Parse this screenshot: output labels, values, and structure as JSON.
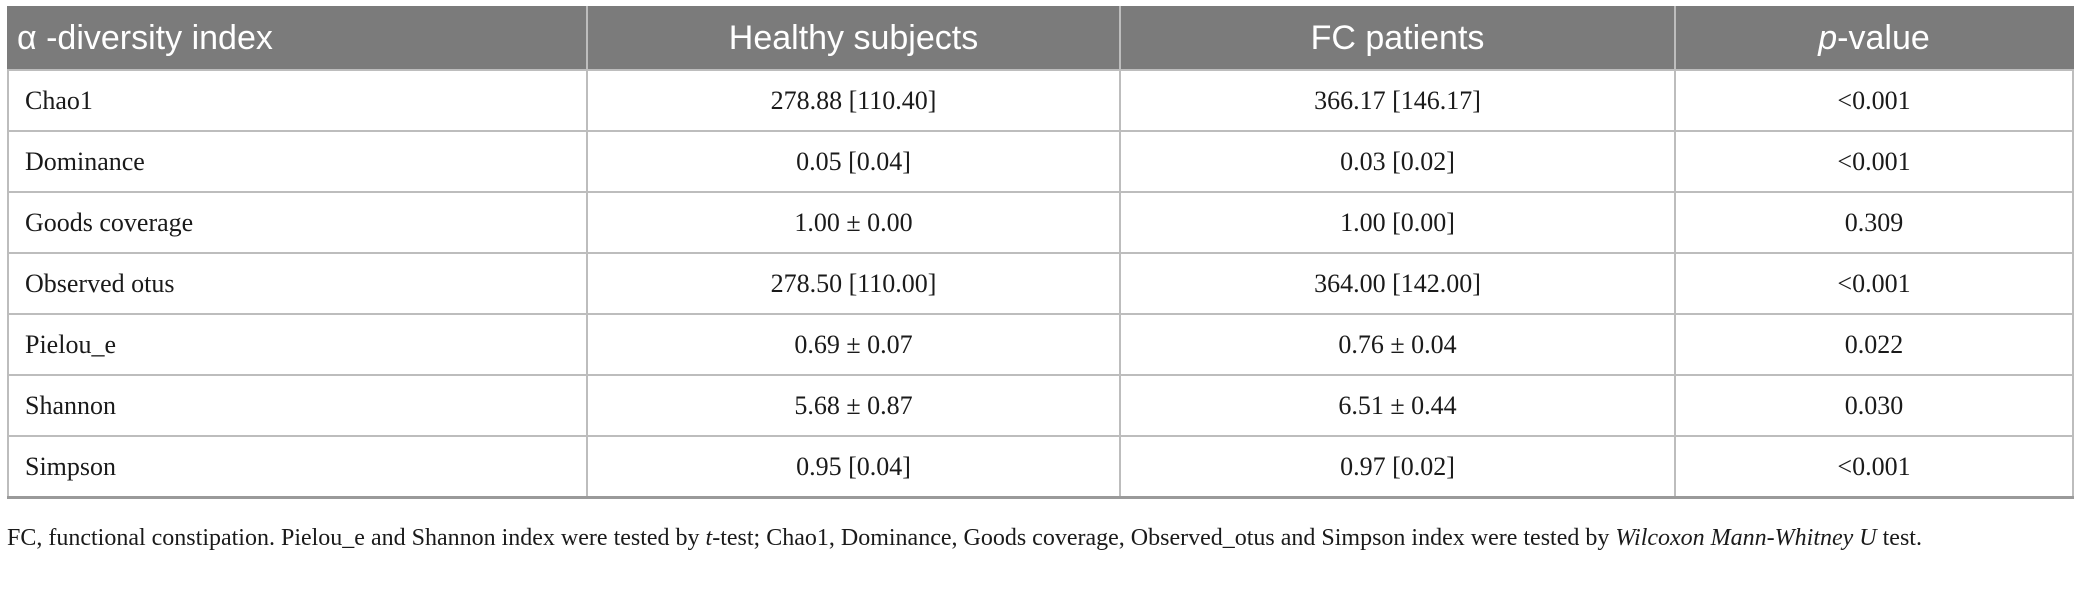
{
  "table": {
    "headers": {
      "col1": "α -diversity index",
      "col2": "Healthy subjects",
      "col3": "FC patients",
      "col4_italic": "p",
      "col4_rest": "-value"
    },
    "rows": [
      {
        "index": "Chao1",
        "healthy": "278.88 [110.40]",
        "fc": "366.17 [146.17]",
        "p": "<0.001"
      },
      {
        "index": "Dominance",
        "healthy": "0.05 [0.04]",
        "fc": "0.03 [0.02]",
        "p": "<0.001"
      },
      {
        "index": "Goods coverage",
        "healthy": "1.00 ± 0.00",
        "fc": "1.00 [0.00]",
        "p": "0.309"
      },
      {
        "index": "Observed otus",
        "healthy": "278.50 [110.00]",
        "fc": "364.00 [142.00]",
        "p": "<0.001"
      },
      {
        "index": "Pielou_e",
        "healthy": "0.69 ± 0.07",
        "fc": "0.76 ± 0.04",
        "p": "0.022"
      },
      {
        "index": "Shannon",
        "healthy": "5.68 ± 0.87",
        "fc": "6.51 ± 0.44",
        "p": "0.030"
      },
      {
        "index": "Simpson",
        "healthy": "0.95 [0.04]",
        "fc": "0.97 [0.02]",
        "p": "<0.001"
      }
    ]
  },
  "footnote": {
    "part1": "FC, functional constipation. Pielou_e and Shannon index were tested by ",
    "t_italic": "t",
    "part2": "-test; Chao1, Dominance, Goods coverage, Observed_otus and Simpson index were tested by ",
    "wilcoxon_italic": "Wilcoxon Mann-Whitney U",
    "part3": " test."
  }
}
